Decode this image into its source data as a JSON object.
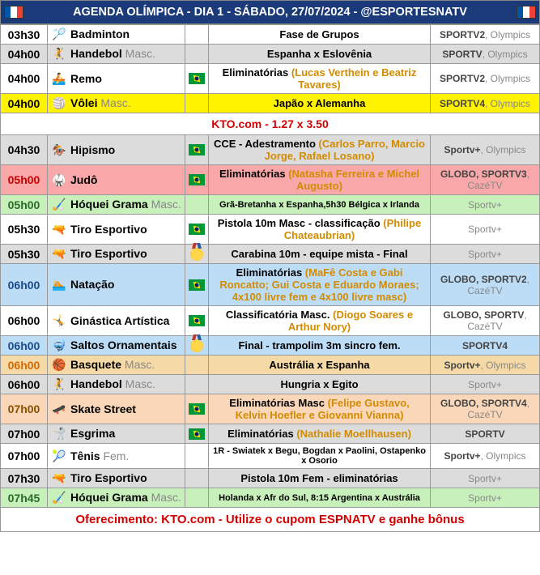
{
  "header": "AGENDA OLÍMPICA - DIA 1 - SÁBADO, 27/07/2024 - @ESPORTESNATV",
  "kto_promo": "KTO.com - 1.27 x 3.50",
  "footer": "Oferecimento: KTO.com - Utilize o cupom ESPNATV e ganhe bônus",
  "rows": [
    {
      "bg": "",
      "time": "03h30",
      "tc": "",
      "icon": "🏸",
      "sport": "Badminton",
      "masc": "",
      "flag": "",
      "event": "Fase de Grupos",
      "hl": "",
      "small": false,
      "ch1": "SPORTV2",
      "ch2": ", Olympics"
    },
    {
      "bg": "bg-gray",
      "time": "04h00",
      "tc": "",
      "icon": "🤾",
      "sport": "Handebol",
      "masc": "Masc.",
      "flag": "",
      "event": "Espanha x Eslovênia",
      "hl": "",
      "small": false,
      "ch1": "SPORTV",
      "ch2": ", Olympics"
    },
    {
      "bg": "",
      "time": "04h00",
      "tc": "",
      "icon": "🚣",
      "sport": "Remo",
      "masc": "",
      "flag": "br",
      "event": "Eliminatórias ",
      "hl": "(Lucas Verthein e Beatriz Tavares)",
      "small": false,
      "ch1": "SPORTV2",
      "ch2": ", Olympics"
    },
    {
      "bg": "bg-yellow",
      "time": "04h00",
      "tc": "",
      "icon": "🏐",
      "sport": "Vôlei",
      "masc": "Masc.",
      "flag": "",
      "event": "Japão x Alemanha",
      "hl": "",
      "small": false,
      "ch1": "SPORTV4",
      "ch2": ", Olympics"
    },
    {
      "bg": "bg-gray",
      "time": "04h30",
      "tc": "",
      "icon": "🏇",
      "sport": "Hipismo",
      "masc": "",
      "flag": "br",
      "event": "CCE - Adestramento ",
      "hl": "(Carlos Parro, Marcio Jorge, Rafael Losano)",
      "small": false,
      "ch1": "Sportv+",
      "ch2": ", Olympics"
    },
    {
      "bg": "bg-red",
      "time": "05h00",
      "tc": "time-red",
      "icon": "🥋",
      "sport": "Judô",
      "masc": "",
      "flag": "br",
      "event": "Eliminatórias ",
      "hl": "(Natasha Ferreira e Michel Augusto)",
      "small": false,
      "ch1": "GLOBO, SPORTV3",
      "ch2": ", CazéTV"
    },
    {
      "bg": "bg-green",
      "time": "05h00",
      "tc": "time-green",
      "icon": "🏑",
      "sport": "Hóquei Grama",
      "masc": "Masc.",
      "flag": "",
      "event": "Grã-Bretanha x Espanha,5h30 Bélgica x Irlanda",
      "hl": "",
      "small": true,
      "ch1": "",
      "ch2": "Sportv+"
    },
    {
      "bg": "",
      "time": "05h30",
      "tc": "",
      "icon": "🔫",
      "sport": "Tiro Esportivo",
      "masc": "",
      "flag": "br",
      "event": "Pistola 10m Masc - classificação ",
      "hl": "(Philipe Chateaubrian)",
      "small": false,
      "ch1": "",
      "ch2": "Sportv+"
    },
    {
      "bg": "bg-gray",
      "time": "05h30",
      "tc": "",
      "icon": "🔫",
      "sport": "Tiro Esportivo",
      "masc": "",
      "flag": "medal",
      "event": "Carabina 10m - equipe mista - Final",
      "hl": "",
      "small": false,
      "ch1": "",
      "ch2": "Sportv+"
    },
    {
      "bg": "bg-blue",
      "time": "06h00",
      "tc": "time-blue",
      "icon": "🏊",
      "sport": "Natação",
      "masc": "",
      "flag": "br",
      "event": "Eliminatórias ",
      "hl": "(MaFê Costa e Gabi Roncatto; Gui Costa e Eduardo Moraes; 4x100 livre fem e 4x100 livre masc)",
      "small": false,
      "ch1": "GLOBO, SPORTV2",
      "ch2": ", CazéTV"
    },
    {
      "bg": "",
      "time": "06h00",
      "tc": "",
      "icon": "🤸",
      "sport": "Ginástica Artística",
      "masc": "",
      "flag": "br",
      "event": "Classificatória Masc. ",
      "hl": "(Diogo Soares e Arthur Nory)",
      "small": false,
      "ch1": "GLOBO, SPORTV",
      "ch2": ", CazéTV"
    },
    {
      "bg": "bg-blue",
      "time": "06h00",
      "tc": "time-blue",
      "icon": "🤿",
      "sport": "Saltos Ornamentais",
      "masc": "",
      "flag": "medal",
      "event": "Final - trampolim 3m sincro fem.",
      "hl": "",
      "small": false,
      "ch1": "SPORTV4",
      "ch2": ""
    },
    {
      "bg": "bg-sand",
      "time": "06h00",
      "tc": "time-orange",
      "icon": "🏀",
      "sport": "Basquete",
      "masc": "Masc.",
      "flag": "",
      "event": "Austrália x Espanha",
      "hl": "",
      "small": false,
      "ch1": "Sportv+",
      "ch2": ", Olympics"
    },
    {
      "bg": "bg-gray",
      "time": "06h00",
      "tc": "",
      "icon": "🤾",
      "sport": "Handebol",
      "masc": "Masc.",
      "flag": "",
      "event": "Hungria x Egito",
      "hl": "",
      "small": false,
      "ch1": "",
      "ch2": "Sportv+"
    },
    {
      "bg": "bg-peach",
      "time": "07h00",
      "tc": "time-dkorange",
      "icon": "🛹",
      "sport": "Skate Street",
      "masc": "",
      "flag": "br",
      "event": "Eliminatórias Masc ",
      "hl": "(Felipe Gustavo, Kelvin Hoefler e Giovanni Vianna)",
      "small": false,
      "ch1": "GLOBO, SPORTV4",
      "ch2": ", CazéTV"
    },
    {
      "bg": "bg-gray",
      "time": "07h00",
      "tc": "",
      "icon": "🤺",
      "sport": "Esgrima",
      "masc": "",
      "flag": "br",
      "event": "Eliminatórias ",
      "hl": "(Nathalie Moellhausen)",
      "small": false,
      "ch1": "SPORTV",
      "ch2": ""
    },
    {
      "bg": "",
      "time": "07h00",
      "tc": "",
      "icon": "🎾",
      "sport": "Tênis",
      "masc": "Fem.",
      "flag": "",
      "event": "1R - Swiatek x Begu, Bogdan x Paolini, Ostapenko x Osorio",
      "hl": "",
      "small": true,
      "ch1": "Sportv+",
      "ch2": ", Olympics"
    },
    {
      "bg": "bg-gray",
      "time": "07h30",
      "tc": "",
      "icon": "🔫",
      "sport": "Tiro Esportivo",
      "masc": "",
      "flag": "",
      "event": "Pistola 10m Fem - eliminatórias",
      "hl": "",
      "small": false,
      "ch1": "",
      "ch2": "Sportv+"
    },
    {
      "bg": "bg-green",
      "time": "07h45",
      "tc": "time-green",
      "icon": "🏑",
      "sport": "Hóquei Grama",
      "masc": "Masc.",
      "flag": "",
      "event": "Holanda x Afr do Sul, 8:15 Argentina x Austrália",
      "hl": "",
      "small": true,
      "ch1": "",
      "ch2": "Sportv+"
    }
  ]
}
